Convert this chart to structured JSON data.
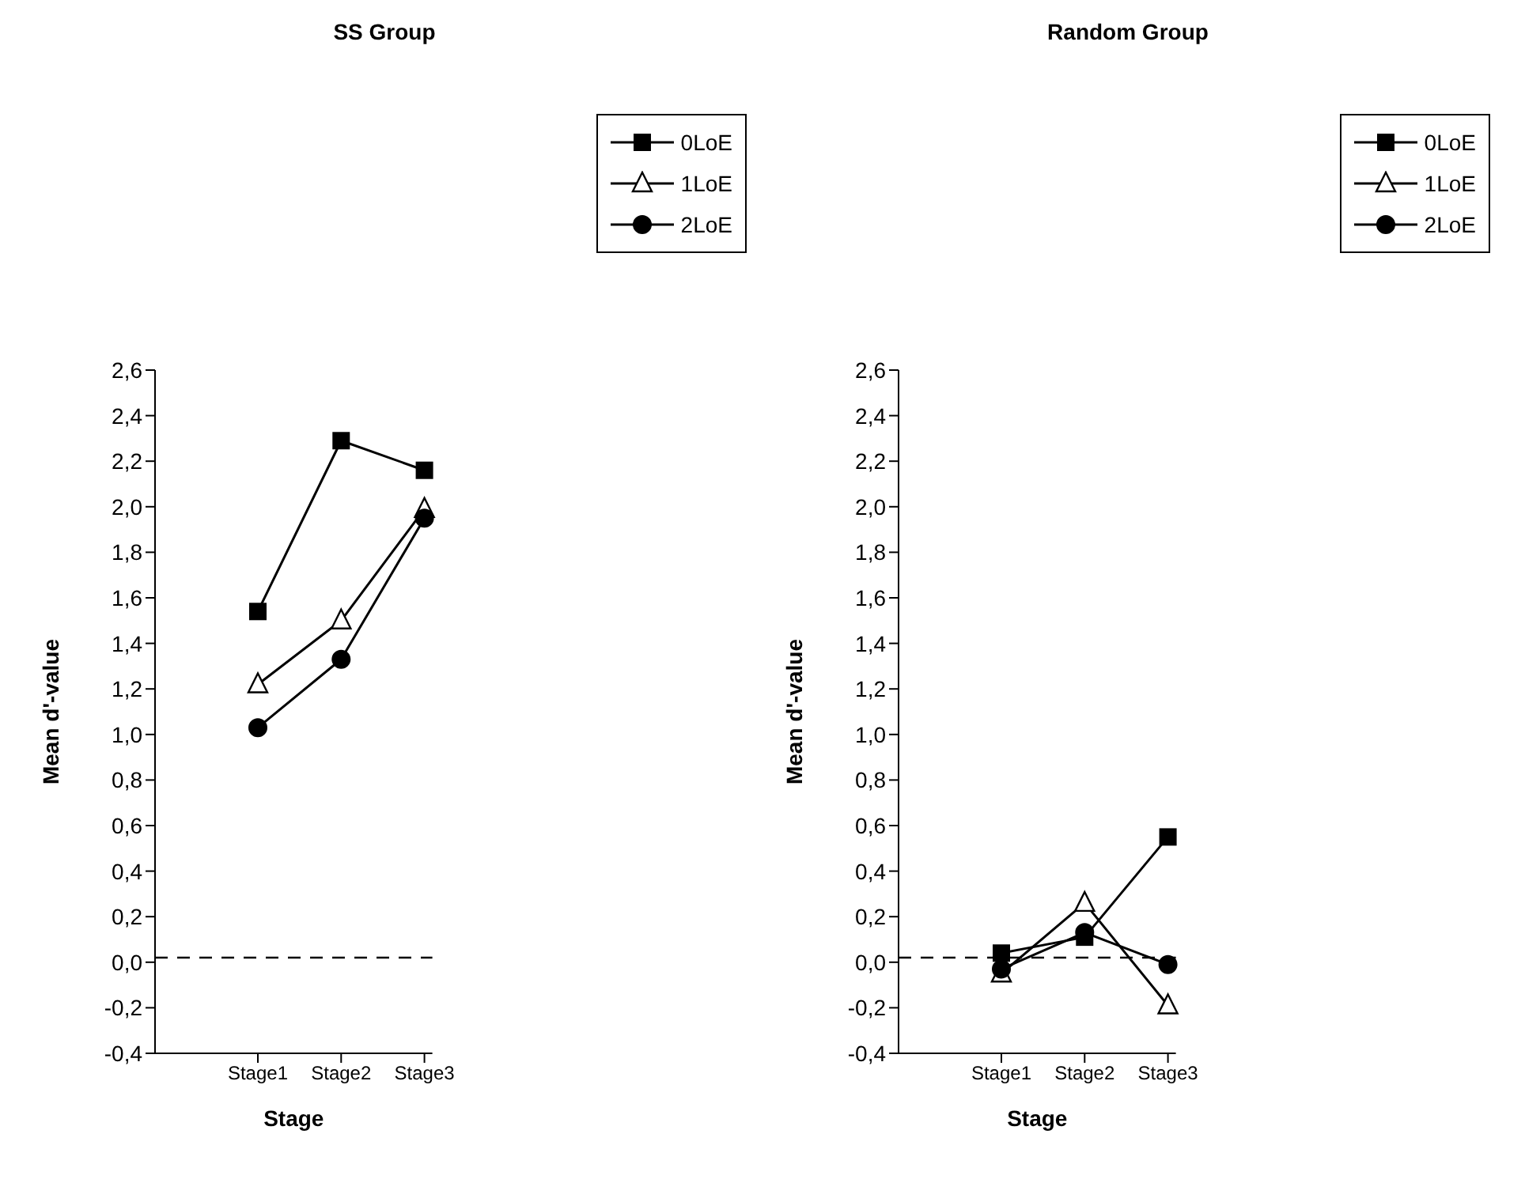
{
  "chart_data": [
    {
      "type": "line",
      "title": "SS Group",
      "xlabel": "Stage",
      "ylabel": "Mean d'-value",
      "categories": [
        "Stage1",
        "Stage2",
        "Stage3"
      ],
      "series": [
        {
          "name": "0LoE",
          "color": "#000000",
          "marker": "square",
          "values": [
            1.54,
            2.29,
            2.16
          ]
        },
        {
          "name": "1LoE",
          "color": "#000000",
          "marker": "triangle",
          "values": [
            1.22,
            1.5,
            1.99
          ]
        },
        {
          "name": "2LoE",
          "color": "#000000",
          "marker": "circle",
          "values": [
            1.03,
            1.33,
            1.95
          ]
        }
      ],
      "ylim": [
        -0.4,
        2.6
      ],
      "yticks": [
        {
          "value": -0.4,
          "label": "-0,4"
        },
        {
          "value": -0.2,
          "label": "-0,2"
        },
        {
          "value": 0,
          "label": "0,0"
        },
        {
          "value": 0.2,
          "label": "0,2"
        },
        {
          "value": 0.4,
          "label": "0,4"
        },
        {
          "value": 0.6,
          "label": "0,6"
        },
        {
          "value": 0.8,
          "label": "0,8"
        },
        {
          "value": 1,
          "label": "1,0"
        },
        {
          "value": 1.2,
          "label": "1,2"
        },
        {
          "value": 1.4,
          "label": "1,4"
        },
        {
          "value": 1.6,
          "label": "1,6"
        },
        {
          "value": 1.8,
          "label": "1,8"
        },
        {
          "value": 2,
          "label": "2,0"
        },
        {
          "value": 2.2,
          "label": "2,2"
        },
        {
          "value": 2.4,
          "label": "2,4"
        },
        {
          "value": 2.6,
          "label": "2,6"
        }
      ],
      "ref_lines": [
        {
          "axis": "y",
          "value": 0.02,
          "line_style": "dashed",
          "color": "#000000"
        }
      ],
      "grid": false,
      "legend": "top right",
      "line_style": "solid"
    },
    {
      "type": "line",
      "title": "Random Group",
      "xlabel": "Stage",
      "ylabel": "Mean d'-value",
      "categories": [
        "Stage1",
        "Stage2",
        "Stage3"
      ],
      "series": [
        {
          "name": "0LoE",
          "color": "#000000",
          "marker": "square",
          "values": [
            0.04,
            0.11,
            0.55
          ]
        },
        {
          "name": "1LoE",
          "color": "#000000",
          "marker": "triangle",
          "values": [
            -0.05,
            0.26,
            -0.19
          ]
        },
        {
          "name": "2LoE",
          "color": "#000000",
          "marker": "circle",
          "values": [
            -0.03,
            0.13,
            -0.01
          ]
        }
      ],
      "ylim": [
        -0.4,
        2.6
      ],
      "yticks": [
        {
          "value": -0.4,
          "label": "-0,4"
        },
        {
          "value": -0.2,
          "label": "-0,2"
        },
        {
          "value": 0,
          "label": "0,0"
        },
        {
          "value": 0.2,
          "label": "0,2"
        },
        {
          "value": 0.4,
          "label": "0,4"
        },
        {
          "value": 0.6,
          "label": "0,6"
        },
        {
          "value": 0.8,
          "label": "0,8"
        },
        {
          "value": 1,
          "label": "1,0"
        },
        {
          "value": 1.2,
          "label": "1,2"
        },
        {
          "value": 1.4,
          "label": "1,4"
        },
        {
          "value": 1.6,
          "label": "1,6"
        },
        {
          "value": 1.8,
          "label": "1,8"
        },
        {
          "value": 2,
          "label": "2,0"
        },
        {
          "value": 2.2,
          "label": "2,2"
        },
        {
          "value": 2.4,
          "label": "2,4"
        },
        {
          "value": 2.6,
          "label": "2,6"
        }
      ],
      "ref_lines": [
        {
          "axis": "y",
          "value": 0.02,
          "line_style": "dashed",
          "color": "#000000"
        }
      ],
      "grid": false,
      "legend": "top right",
      "line_style": "solid"
    }
  ]
}
